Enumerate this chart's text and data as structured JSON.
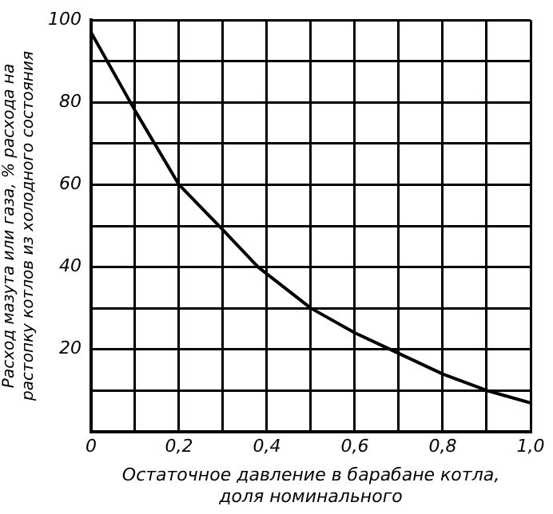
{
  "chart_data": {
    "type": "line",
    "xlabel": "Остаточное давление в барабане котла,\nдоля номинального",
    "ylabel": "Расход мазута или газа, % расхода на\nрастопку котлов из холодного состояния",
    "x": [
      0,
      0.1,
      0.2,
      0.3,
      0.38,
      0.5,
      0.6,
      0.68,
      0.8,
      0.9,
      1.0
    ],
    "series": [
      {
        "color": "#000000",
        "values": [
          97,
          78,
          60,
          49,
          40,
          30,
          24,
          20,
          14,
          10,
          7
        ]
      }
    ],
    "xlim": [
      0,
      1
    ],
    "ylim": [
      0,
      100
    ],
    "xticks": [
      {
        "value": 0,
        "label": "0"
      },
      {
        "value": 0.1,
        "label": null
      },
      {
        "value": 0.2,
        "label": "0,2"
      },
      {
        "value": 0.3,
        "label": null
      },
      {
        "value": 0.4,
        "label": "0,4"
      },
      {
        "value": 0.5,
        "label": null
      },
      {
        "value": 0.6,
        "label": "0,6"
      },
      {
        "value": 0.7,
        "label": null
      },
      {
        "value": 0.8,
        "label": "0,8"
      },
      {
        "value": 0.9,
        "label": null
      },
      {
        "value": 1,
        "label": "1,0"
      }
    ],
    "yticks": [
      {
        "value": 0,
        "label": null
      },
      {
        "value": 10,
        "label": null
      },
      20,
      {
        "value": 30,
        "label": null
      },
      40,
      {
        "value": 50,
        "label": null
      },
      60,
      {
        "value": 70,
        "label": null
      },
      80,
      {
        "value": 90,
        "label": null
      },
      100
    ],
    "grid": true,
    "marker": "none",
    "line_style": "solid",
    "legend": false
  }
}
